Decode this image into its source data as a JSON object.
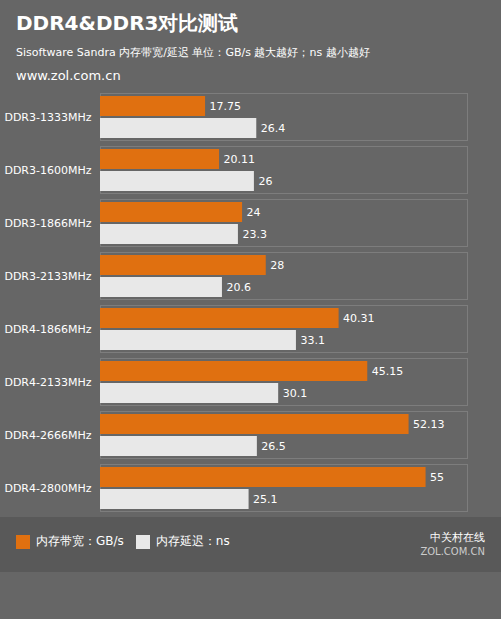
{
  "chart_data": {
    "type": "bar",
    "orientation": "horizontal",
    "title": "DDR4&DDR3对比测试",
    "subtitle": "Sisoftware Sandra 内存带宽/延迟   单位：GB/s 越大越好；ns 越小越好",
    "annotations": [
      "www.zol.com.cn",
      "中关村在线",
      "ZOL.COM.CN"
    ],
    "categories": [
      "DDR3-1333MHz",
      "DDR3-1600MHz",
      "DDR3-1866MHz",
      "DDR3-2133MHz",
      "DDR4-1866MHz",
      "DDR4-2133MHz",
      "DDR4-2666MHz",
      "DDR4-2800MHz"
    ],
    "series": [
      {
        "name": "内存带宽：GB/s",
        "color": "#E07010",
        "values": [
          17.75,
          20.11,
          24,
          28,
          40.31,
          45.15,
          52.13,
          55
        ]
      },
      {
        "name": "内存延迟：ns",
        "color": "#E8E8E8",
        "values": [
          26.4,
          26,
          23.3,
          20.6,
          33.1,
          30.1,
          26.5,
          25.1
        ]
      }
    ],
    "xlim": [
      0,
      62
    ],
    "data_labels": true,
    "tick_labels": "y",
    "grid": false,
    "legend": "bottom"
  }
}
